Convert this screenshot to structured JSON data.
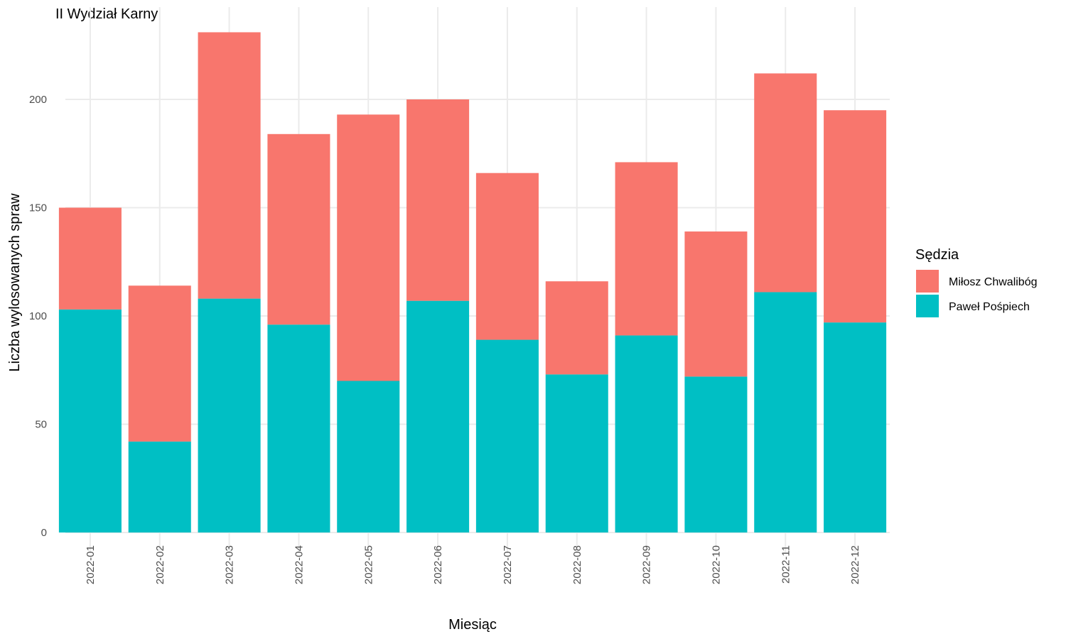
{
  "chart_data": {
    "type": "bar",
    "stacked": true,
    "title": "II Wydział Karny",
    "xlabel": "Miesiąc",
    "ylabel": "Liczba wylosowanych spraw",
    "ylim": [
      0,
      235
    ],
    "yticks": [
      0,
      50,
      100,
      150,
      200
    ],
    "grid": true,
    "legend": {
      "title": "Sędzia",
      "placement": "right"
    },
    "categories": [
      "2022-01",
      "2022-02",
      "2022-03",
      "2022-04",
      "2022-05",
      "2022-06",
      "2022-07",
      "2022-08",
      "2022-09",
      "2022-10",
      "2022-11",
      "2022-12"
    ],
    "series": [
      {
        "name": "Paweł Pośpiech",
        "color": "#00BFC4",
        "values": [
          103,
          42,
          108,
          96,
          70,
          107,
          89,
          73,
          91,
          72,
          111,
          97
        ]
      },
      {
        "name": "Miłosz Chwalibóg",
        "color": "#F8766D",
        "values": [
          47,
          72,
          123,
          88,
          123,
          93,
          77,
          43,
          80,
          67,
          101,
          98
        ]
      }
    ],
    "legend_order": [
      "Miłosz Chwalibóg",
      "Paweł Pośpiech"
    ]
  }
}
